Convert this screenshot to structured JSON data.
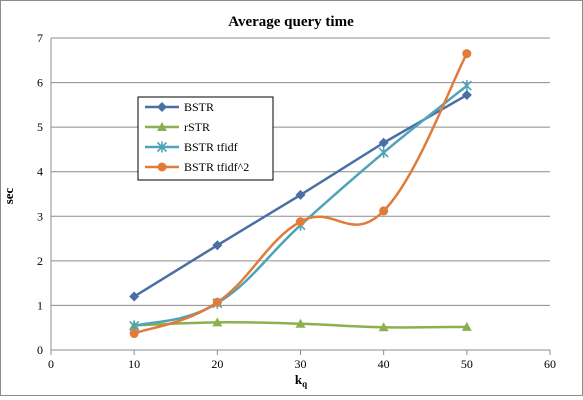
{
  "chart_data": {
    "type": "line",
    "title": "Average query time",
    "xlabel": "k",
    "xlabel_subscript": "q",
    "ylabel": "sec",
    "xlim": [
      0,
      60
    ],
    "ylim": [
      0,
      7
    ],
    "xticks": [
      0,
      10,
      20,
      30,
      40,
      50,
      60
    ],
    "yticks": [
      0,
      1,
      2,
      3,
      4,
      5,
      6,
      7
    ],
    "grid": "horizontal",
    "legend_position": "upper-left",
    "series": [
      {
        "name": "BSTR",
        "color": "#4a6fa5",
        "marker": "diamond",
        "smooth": false,
        "x": [
          10,
          20,
          30,
          40,
          50
        ],
        "y": [
          1.2,
          2.35,
          3.48,
          4.65,
          5.72
        ]
      },
      {
        "name": "rSTR",
        "color": "#8cb050",
        "marker": "triangle",
        "smooth": true,
        "x": [
          10,
          20,
          30,
          40,
          50
        ],
        "y": [
          0.55,
          0.62,
          0.59,
          0.51,
          0.52
        ]
      },
      {
        "name": "BSTR tfidf",
        "color": "#4fa3b8",
        "marker": "star",
        "smooth": true,
        "x": [
          10,
          20,
          30,
          40,
          50
        ],
        "y": [
          0.54,
          1.05,
          2.8,
          4.43,
          5.93
        ]
      },
      {
        "name": "BSTR tfidf^2",
        "color": "#e07b39",
        "marker": "circle",
        "smooth": true,
        "x": [
          10,
          20,
          30,
          40,
          50
        ],
        "y": [
          0.37,
          1.07,
          2.88,
          3.12,
          6.65
        ]
      }
    ]
  }
}
